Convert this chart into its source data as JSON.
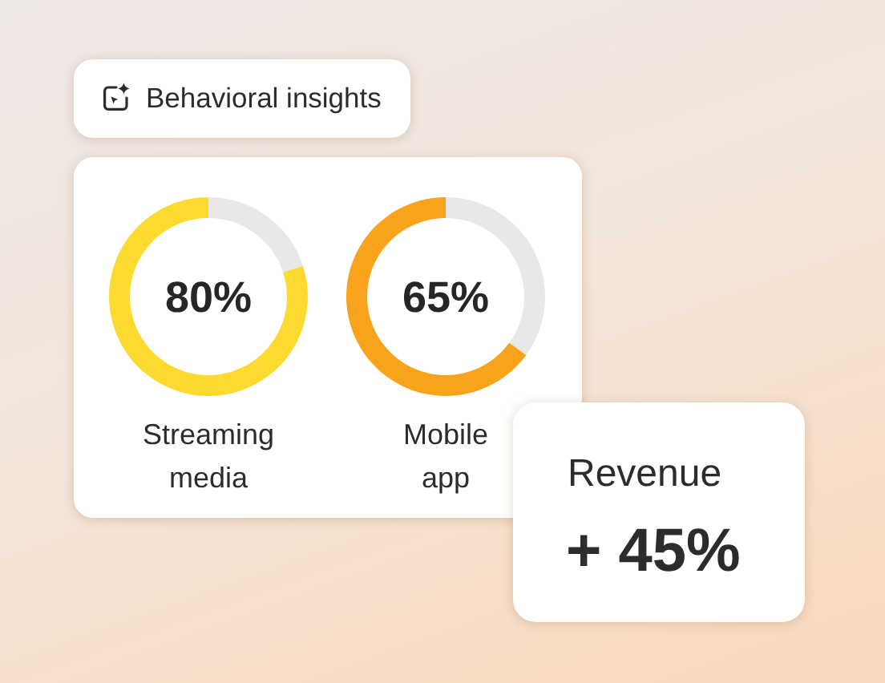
{
  "chart_data": [
    {
      "type": "other",
      "title": "Behavioral insights"
    },
    {
      "type": "donut",
      "title": "Streaming media",
      "categories": [
        null,
        null
      ],
      "values": [
        20,
        80
      ],
      "colors": [
        "#e8e8e8",
        "#fdda2f"
      ],
      "value_labels": [
        null,
        "80%"
      ]
    },
    {
      "type": "donut",
      "title": "Mobile app",
      "categories": [
        null,
        null
      ],
      "values": [
        35,
        65
      ],
      "colors": [
        "#e8e8e8",
        "#f9a21b"
      ],
      "value_labels": [
        null,
        "65%"
      ]
    },
    {
      "type": "other",
      "title": "Revenue",
      "annotations": [
        "+ 45%"
      ]
    }
  ]
}
